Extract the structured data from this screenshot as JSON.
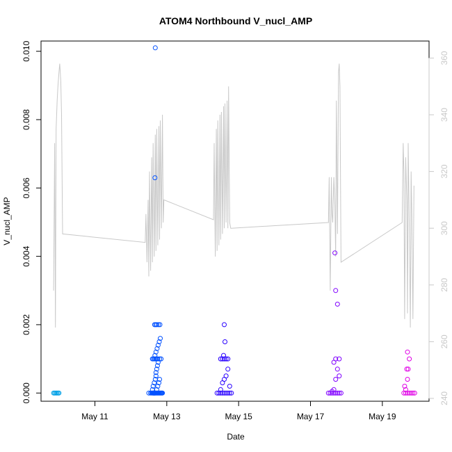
{
  "chart_data": {
    "type": "scatter",
    "title": "ATOM4 Northbound V_nucl_AMP",
    "xlabel": "Date",
    "ylabel": "V_nucl_AMP",
    "x_ticks": [
      "May 11",
      "May 13",
      "May 15",
      "May 17",
      "May 19"
    ],
    "x_tick_days": [
      11,
      13,
      15,
      17,
      19
    ],
    "xlim_days": [
      9.5,
      20.3
    ],
    "ylim": [
      -0.00024,
      0.0103
    ],
    "y_ticks": [
      0.0,
      0.002,
      0.004,
      0.006,
      0.008,
      0.01
    ],
    "y_tick_labels": [
      "0.000",
      "0.002",
      "0.004",
      "0.006",
      "0.008",
      "0.010"
    ],
    "y2_ticks": [
      240,
      260,
      280,
      300,
      320,
      340,
      360
    ],
    "y2_tick_labels": [
      "240",
      "260",
      "280",
      "300",
      "320",
      "340",
      "360"
    ],
    "y2lim": [
      239,
      366
    ],
    "grid": false,
    "legend": "none",
    "point_color_gradient": [
      "#00a0e6",
      "#0050ff",
      "#3000ff",
      "#8000ff",
      "#e000e6"
    ],
    "line_color": "#c8c8c8",
    "series": [
      {
        "kind": "points",
        "deployment": 1,
        "color": "#00a0e6",
        "x": [
          9.85,
          9.88,
          9.91,
          9.94,
          9.97,
          10.0
        ],
        "y": [
          0,
          0,
          0,
          0,
          0,
          0
        ]
      },
      {
        "kind": "points",
        "deployment": 2,
        "color": "#0050ff",
        "x": [
          12.5,
          12.55,
          12.58,
          12.6,
          12.62,
          12.63,
          12.64,
          12.65,
          12.66,
          12.67,
          12.68,
          12.7,
          12.72,
          12.74,
          12.76,
          12.78,
          12.8,
          12.82,
          12.84,
          12.86,
          12.88,
          12.6,
          12.62,
          12.65,
          12.68,
          12.7,
          12.72,
          12.75,
          12.78,
          12.8,
          12.7,
          12.72,
          12.74,
          12.76,
          12.6,
          12.63,
          12.66,
          12.69,
          12.72,
          12.75,
          12.8,
          12.84,
          12.67,
          12.7,
          12.73,
          12.76,
          12.79,
          12.82,
          12.66,
          12.69,
          12.72,
          12.77,
          12.81,
          12.67,
          12.68
        ],
        "y": [
          0,
          0,
          0,
          0,
          0,
          0,
          0,
          0,
          0,
          0,
          0,
          0,
          0,
          0,
          0,
          0,
          0,
          0,
          0,
          0,
          0,
          0.0001,
          0.0002,
          0.0003,
          0.0004,
          0.0005,
          0.0001,
          0.0002,
          0.0003,
          0.0004,
          0.0006,
          0.0007,
          0.0008,
          0.0009,
          0.001,
          0.001,
          0.001,
          0.001,
          0.001,
          0.001,
          0.001,
          0.001,
          0.0011,
          0.0012,
          0.0013,
          0.0014,
          0.0015,
          0.0016,
          0.002,
          0.002,
          0.002,
          0.002,
          0.002,
          0.0063,
          0.0101
        ]
      },
      {
        "kind": "points",
        "deployment": 3,
        "color": "#2800ff",
        "x": [
          14.4,
          14.45,
          14.5,
          14.55,
          14.6,
          14.65,
          14.7,
          14.75,
          14.8,
          14.5,
          14.55,
          14.6,
          14.65,
          14.7,
          14.75,
          14.5,
          14.55,
          14.6,
          14.65,
          14.7,
          14.58,
          14.62,
          14.6
        ],
        "y": [
          0,
          0,
          0,
          0,
          0,
          0,
          0,
          0,
          0,
          0.0001,
          0.0003,
          0.0004,
          0.0005,
          0.0007,
          0.0002,
          0.001,
          0.001,
          0.001,
          0.001,
          0.001,
          0.0011,
          0.0015,
          0.002
        ]
      },
      {
        "kind": "points",
        "deployment": 4,
        "color": "#8000ff",
        "x": [
          17.5,
          17.55,
          17.6,
          17.65,
          17.7,
          17.75,
          17.8,
          17.85,
          17.6,
          17.65,
          17.7,
          17.75,
          17.8,
          17.65,
          17.7,
          17.8,
          17.75,
          17.7,
          17.68
        ],
        "y": [
          0,
          0,
          0,
          0,
          0,
          0,
          0,
          0,
          5e-05,
          0.0001,
          0.0004,
          0.0007,
          0.0005,
          0.0009,
          0.001,
          0.001,
          0.0026,
          0.003,
          0.0041
        ]
      },
      {
        "kind": "points",
        "deployment": 5,
        "color": "#e000e6",
        "x": [
          19.6,
          19.65,
          19.7,
          19.75,
          19.8,
          19.85,
          19.9,
          19.62,
          19.65,
          19.7,
          19.68,
          19.72,
          19.75,
          19.7
        ],
        "y": [
          0,
          0,
          0,
          0,
          0,
          0,
          0,
          0.0002,
          0.0001,
          0.0004,
          0.0007,
          0.0007,
          0.001,
          0.0012
        ]
      },
      {
        "kind": "line",
        "axis": "right",
        "name_hidden": true,
        "color": "#c8c8c8",
        "x": [
          9.85,
          9.88,
          9.9,
          9.92,
          9.95,
          9.97,
          10.0,
          10.02,
          10.05,
          10.07,
          10.1,
          12.4,
          12.42,
          12.45,
          12.48,
          12.5,
          12.52,
          12.55,
          12.58,
          12.6,
          12.62,
          12.65,
          12.68,
          12.7,
          12.72,
          12.75,
          12.78,
          12.8,
          12.82,
          12.85,
          12.88,
          12.9,
          12.92,
          14.3,
          14.32,
          14.35,
          14.38,
          14.4,
          14.42,
          14.45,
          14.48,
          14.5,
          14.52,
          14.55,
          14.58,
          14.6,
          14.62,
          14.65,
          14.68,
          14.7,
          14.72,
          14.75,
          14.78,
          14.8,
          17.5,
          17.52,
          17.55,
          17.58,
          17.6,
          17.62,
          17.65,
          17.68,
          17.7,
          17.72,
          17.75,
          17.78,
          17.8,
          17.82,
          17.85,
          19.55,
          19.58,
          19.6,
          19.62,
          19.65,
          19.68,
          19.7,
          19.72,
          19.75,
          19.78,
          19.8,
          19.82,
          19.85,
          19.88
        ],
        "y": [
          278,
          330,
          265,
          335,
          345,
          350,
          355,
          358,
          352,
          340,
          298,
          295,
          305,
          288,
          310,
          283,
          320,
          285,
          325,
          288,
          330,
          290,
          333,
          292,
          335,
          294,
          336,
          296,
          338,
          300,
          340,
          302,
          310,
          303,
          330,
          290,
          335,
          292,
          338,
          294,
          340,
          296,
          341,
          298,
          343,
          300,
          344,
          302,
          345,
          300,
          350,
          302,
          300,
          300,
          302,
          318,
          278,
          318,
          305,
          302,
          318,
          308,
          290,
          345,
          298,
          355,
          358,
          350,
          288,
          302,
          330,
          320,
          268,
          325,
          310,
          270,
          330,
          300,
          265,
          320,
          305,
          268,
          315
        ]
      }
    ]
  }
}
